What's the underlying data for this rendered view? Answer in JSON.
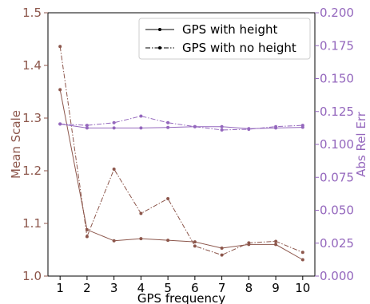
{
  "chart_data": {
    "type": "line",
    "x": [
      1,
      2,
      3,
      4,
      5,
      6,
      7,
      8,
      9,
      10
    ],
    "xlabel": "GPS frequency",
    "ylabel_left": "Mean Scale",
    "ylabel_right": "Abs Rel Err",
    "xlim": [
      0.55,
      10.45
    ],
    "ylim_left": [
      1.0,
      1.5
    ],
    "ylim_right": [
      0.0,
      0.2
    ],
    "xticks": [
      "1",
      "2",
      "3",
      "4",
      "5",
      "6",
      "7",
      "8",
      "9",
      "10"
    ],
    "yticks_left": [
      "1.0",
      "1.1",
      "1.2",
      "1.3",
      "1.4",
      "1.5"
    ],
    "yticks_right": [
      "0.000",
      "0.025",
      "0.050",
      "0.075",
      "0.100",
      "0.125",
      "0.150",
      "0.175",
      "0.200"
    ],
    "legend_placement": "top-right",
    "grid": false,
    "colors": {
      "mean_scale": "#8c564b",
      "abs_rel_err": "#9467bd",
      "legend": "#000000"
    },
    "legend": [
      {
        "name": "GPS with height",
        "style": "solid"
      },
      {
        "name": "GPS with no height",
        "style": "dashdot"
      }
    ],
    "series": [
      {
        "name": "GPS with height",
        "axis": "left",
        "metric": "Mean Scale",
        "style": "solid",
        "values": [
          1.354,
          1.088,
          1.067,
          1.071,
          1.068,
          1.065,
          1.053,
          1.06,
          1.06,
          1.031
        ]
      },
      {
        "name": "GPS with no height",
        "axis": "left",
        "metric": "Mean Scale",
        "style": "dashdot",
        "values": [
          1.436,
          1.075,
          1.203,
          1.119,
          1.147,
          1.057,
          1.04,
          1.063,
          1.066,
          1.045
        ]
      },
      {
        "name": "GPS with height",
        "axis": "right",
        "metric": "Abs Rel Err",
        "style": "solid",
        "values": [
          0.1155,
          0.1125,
          0.1125,
          0.1125,
          0.1129,
          0.1135,
          0.1135,
          0.112,
          0.1125,
          0.113
        ]
      },
      {
        "name": "GPS with no height",
        "axis": "right",
        "metric": "Abs Rel Err",
        "style": "dashdot",
        "values": [
          0.1155,
          0.1145,
          0.1165,
          0.1215,
          0.1165,
          0.1135,
          0.111,
          0.1115,
          0.1135,
          0.1145
        ]
      }
    ]
  }
}
